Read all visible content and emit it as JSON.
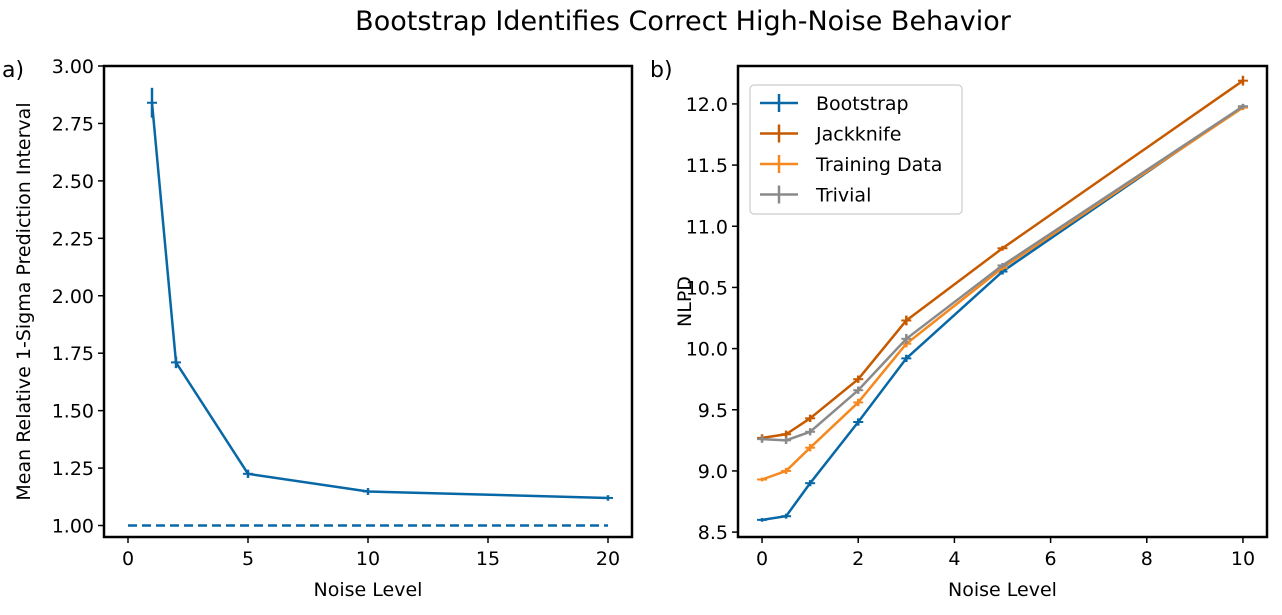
{
  "figure_title": "Bootstrap Identifies Correct High-Noise Behavior",
  "colors": {
    "bootstrap": "#0868a6",
    "jackknife": "#c65a00",
    "training": "#f5881e",
    "trivial": "#8a8a8a",
    "axis": "#000000"
  },
  "chart_data": [
    {
      "type": "line",
      "panel_label": "a)",
      "xlabel": "Noise Level",
      "ylabel": "Mean Relative 1-Sigma Prediction Interval",
      "xlim": [
        -1,
        21
      ],
      "ylim": [
        0.95,
        3.0
      ],
      "xticks": [
        0,
        5,
        10,
        15,
        20
      ],
      "xtick_labels": [
        "0",
        "5",
        "10",
        "15",
        "20"
      ],
      "yticks": [
        1.0,
        1.25,
        1.5,
        1.75,
        2.0,
        2.25,
        2.5,
        2.75,
        3.0
      ],
      "ytick_labels": [
        "1.00",
        "1.25",
        "1.50",
        "1.75",
        "2.00",
        "2.25",
        "2.50",
        "2.75",
        "3.00"
      ],
      "grid": false,
      "series": [
        {
          "color_key": "bootstrap",
          "style": "solid",
          "x": [
            1,
            2,
            5,
            10,
            20
          ],
          "y": [
            2.84,
            1.71,
            1.225,
            1.148,
            1.12
          ],
          "err": [
            0.065,
            0.025,
            0.018,
            0.015,
            0.012
          ]
        },
        {
          "color_key": "bootstrap",
          "style": "dashed",
          "x": [
            0,
            20
          ],
          "y": [
            1.0,
            1.0
          ],
          "err": [
            0,
            0
          ]
        }
      ]
    },
    {
      "type": "line",
      "panel_label": "b)",
      "xlabel": "Noise Level",
      "ylabel": "NLPD",
      "xlim": [
        -0.5,
        10.5
      ],
      "ylim": [
        8.46,
        12.31
      ],
      "xticks": [
        0,
        2,
        4,
        6,
        8,
        10
      ],
      "xtick_labels": [
        "0",
        "2",
        "4",
        "6",
        "8",
        "10"
      ],
      "yticks": [
        8.5,
        9.0,
        9.5,
        10.0,
        10.5,
        11.0,
        11.5,
        12.0
      ],
      "ytick_labels": [
        "8.5",
        "9.0",
        "9.5",
        "10.0",
        "10.5",
        "11.0",
        "11.5",
        "12.0"
      ],
      "grid": false,
      "legend_position": "upper-left",
      "series": [
        {
          "name": "Bootstrap",
          "color_key": "bootstrap",
          "x": [
            0,
            0.5,
            1,
            2,
            3,
            5,
            10
          ],
          "y": [
            8.6,
            8.63,
            8.9,
            9.4,
            9.92,
            10.63,
            11.98
          ],
          "err": [
            0.015,
            0.02,
            0.025,
            0.03,
            0.03,
            0.025,
            0.02
          ]
        },
        {
          "name": "Jackknife",
          "color_key": "jackknife",
          "x": [
            0,
            0.5,
            1,
            2,
            3,
            5,
            10
          ],
          "y": [
            9.27,
            9.3,
            9.43,
            9.75,
            10.23,
            10.82,
            12.19
          ],
          "err": [
            0.03,
            0.03,
            0.03,
            0.03,
            0.04,
            0.02,
            0.04
          ]
        },
        {
          "name": "Training Data",
          "color_key": "training",
          "x": [
            0,
            0.5,
            1,
            2,
            3,
            5,
            10
          ],
          "y": [
            8.93,
            9.0,
            9.19,
            9.56,
            10.04,
            10.66,
            11.97
          ],
          "err": [
            0.015,
            0.025,
            0.03,
            0.03,
            0.03,
            0.02,
            0.02
          ]
        },
        {
          "name": "Trivial",
          "color_key": "trivial",
          "x": [
            0,
            0.5,
            1,
            2,
            3,
            5,
            10
          ],
          "y": [
            9.26,
            9.25,
            9.32,
            9.66,
            10.08,
            10.68,
            11.98
          ],
          "err": [
            0.03,
            0.03,
            0.03,
            0.03,
            0.04,
            0.02,
            0.02
          ]
        }
      ]
    }
  ]
}
